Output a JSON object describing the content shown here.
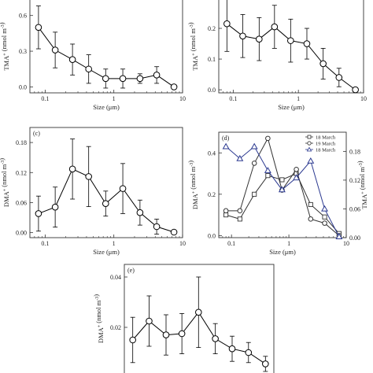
{
  "chart_data": [
    {
      "panel": "",
      "type": "line",
      "xscale": "log",
      "xlim": [
        0.06,
        10
      ],
      "ylim": [
        -0.05,
        0.75
      ],
      "xticks": [
        {
          "v": 0.1,
          "t": "0.1"
        },
        {
          "v": 1,
          "t": "1"
        },
        {
          "v": 10,
          "t": "10"
        }
      ],
      "yticks": [
        {
          "v": 0,
          "t": "0.0"
        },
        {
          "v": 0.3,
          "t": "0.3"
        },
        {
          "v": 0.6,
          "t": "0.6"
        }
      ],
      "xlabel": "Size (μm)",
      "ylabel_main": "TMA",
      "ylabel_sup": "+",
      "ylabel_unit": "(nmol m",
      "ylabel_unit_sup": "-3",
      "ylabel_end": ")",
      "series": [
        {
          "x": [
            0.08,
            0.14,
            0.25,
            0.43,
            0.76,
            1.35,
            2.4,
            4.2,
            7.5
          ],
          "y": [
            0.5,
            0.31,
            0.23,
            0.15,
            0.07,
            0.07,
            0.07,
            0.1,
            0.0
          ],
          "err": [
            0.18,
            0.15,
            0.13,
            0.12,
            0.08,
            0.08,
            0.04,
            0.07,
            0.0
          ],
          "marker": "circle",
          "color": "#000000"
        }
      ]
    },
    {
      "panel": "",
      "type": "line",
      "xscale": "log",
      "xlim": [
        0.06,
        10
      ],
      "ylim": [
        -0.01,
        0.3
      ],
      "xticks": [
        {
          "v": 0.1,
          "t": "0.1"
        },
        {
          "v": 1,
          "t": "1"
        },
        {
          "v": 10,
          "t": "10"
        }
      ],
      "yticks": [
        {
          "v": 0,
          "t": "0.0"
        },
        {
          "v": 0.1,
          "t": "0.1"
        },
        {
          "v": 0.2,
          "t": "0.2"
        }
      ],
      "xlabel": "Size (μm)",
      "ylabel_main": "TMA",
      "ylabel_sup": "+",
      "ylabel_unit": "(nmol m",
      "ylabel_unit_sup": "-3",
      "ylabel_end": ")",
      "series": [
        {
          "x": [
            0.08,
            0.14,
            0.25,
            0.43,
            0.76,
            1.35,
            2.4,
            4.2,
            7.5
          ],
          "y": [
            0.215,
            0.175,
            0.165,
            0.205,
            0.16,
            0.15,
            0.085,
            0.04,
            0.0
          ],
          "err": [
            0.09,
            0.07,
            0.07,
            0.07,
            0.07,
            0.05,
            0.05,
            0.03,
            0.0
          ],
          "marker": "circle",
          "color": "#000000"
        }
      ]
    },
    {
      "panel": "(c)",
      "type": "line",
      "xscale": "log",
      "xlim": [
        0.06,
        10
      ],
      "ylim": [
        -0.01,
        0.21
      ],
      "xticks": [
        {
          "v": 0.1,
          "t": "0.1"
        },
        {
          "v": 1,
          "t": "1"
        },
        {
          "v": 10,
          "t": "10"
        }
      ],
      "yticks": [
        {
          "v": 0,
          "t": "0.00"
        },
        {
          "v": 0.06,
          "t": "0.06"
        },
        {
          "v": 0.12,
          "t": "0.12"
        },
        {
          "v": 0.18,
          "t": "0.18"
        }
      ],
      "xlabel": "Size (μm)",
      "ylabel_main": "DMA",
      "ylabel_sup": "+",
      "ylabel_unit": "(nmol m",
      "ylabel_unit_sup": "-3",
      "ylabel_end": ")",
      "series": [
        {
          "x": [
            0.08,
            0.14,
            0.25,
            0.43,
            0.76,
            1.35,
            2.4,
            4.2,
            7.5
          ],
          "y": [
            0.038,
            0.051,
            0.127,
            0.112,
            0.058,
            0.088,
            0.04,
            0.012,
            0.001
          ],
          "err": [
            0.035,
            0.04,
            0.06,
            0.06,
            0.025,
            0.05,
            0.025,
            0.015,
            0.0
          ],
          "marker": "circle",
          "color": "#000000"
        }
      ]
    },
    {
      "panel": "(d)",
      "type": "line",
      "xscale": "log",
      "xlim": [
        0.06,
        10
      ],
      "ylim": [
        -0.01,
        0.5
      ],
      "ylim_right": [
        0.0,
        0.22
      ],
      "xticks": [
        {
          "v": 0.1,
          "t": "0.1"
        },
        {
          "v": 1,
          "t": "1"
        },
        {
          "v": 10,
          "t": "10"
        }
      ],
      "yticks": [
        {
          "v": 0,
          "t": "0.0"
        },
        {
          "v": 0.2,
          "t": "0.2"
        },
        {
          "v": 0.4,
          "t": "0.4"
        }
      ],
      "yticks_right": [
        {
          "v": 0,
          "t": "0.00"
        },
        {
          "v": 0.06,
          "t": "0.06"
        },
        {
          "v": 0.12,
          "t": "0.12"
        },
        {
          "v": 0.18,
          "t": "0.18"
        }
      ],
      "xlabel": "Size (μm)",
      "ylabel_main": "DMA",
      "ylabel_sup": "+",
      "ylabel_unit": "(nmol m",
      "ylabel_unit_sup": "-3",
      "ylabel_end": ")",
      "ylabel_right_main": "TMA",
      "ylabel_right_sup": "+",
      "ylabel_right_unit": "(nmol m",
      "ylabel_right_unit_sup": "-3",
      "ylabel_right_end": ")",
      "legend": "top-right",
      "series": [
        {
          "name": "18 March",
          "axis": "left",
          "marker": "square",
          "color": "#333333",
          "x": [
            0.08,
            0.14,
            0.25,
            0.43,
            0.76,
            1.35,
            2.4,
            4.2,
            7.5
          ],
          "y": [
            0.1,
            0.08,
            0.2,
            0.29,
            0.27,
            0.3,
            0.15,
            0.09,
            0.01
          ]
        },
        {
          "name": "19 March",
          "axis": "left",
          "marker": "circle",
          "color": "#333333",
          "x": [
            0.08,
            0.14,
            0.25,
            0.43,
            0.76,
            1.35,
            2.4,
            4.2,
            7.5
          ],
          "y": [
            0.12,
            0.12,
            0.35,
            0.47,
            0.22,
            0.32,
            0.08,
            0.06,
            0.0
          ]
        },
        {
          "name": "18 March",
          "axis": "right",
          "marker": "triangle",
          "color": "#2b3990",
          "x": [
            0.08,
            0.14,
            0.25,
            0.43,
            0.76,
            1.35,
            2.4,
            4.2,
            7.5
          ],
          "y": [
            0.19,
            0.165,
            0.19,
            0.14,
            0.1,
            0.125,
            0.16,
            0.06,
            0.002
          ]
        }
      ]
    },
    {
      "panel": "(e)",
      "type": "line",
      "xscale": "log",
      "xlim": [
        0.06,
        10
      ],
      "ylim": [
        0.0,
        0.045
      ],
      "xticks": [],
      "yticks": [
        {
          "v": 0.02,
          "t": "0.02"
        },
        {
          "v": 0.04,
          "t": "0.04"
        }
      ],
      "xlabel": "",
      "ylabel_main": "DMA",
      "ylabel_sup": "+",
      "ylabel_unit": "(nmol m",
      "ylabel_unit_sup": "-3",
      "ylabel_end": ")",
      "series": [
        {
          "x": [
            0.08,
            0.14,
            0.25,
            0.43,
            0.76,
            1.35,
            2.4,
            4.2,
            7.5
          ],
          "y": [
            0.015,
            0.0225,
            0.017,
            0.0175,
            0.026,
            0.0155,
            0.0115,
            0.01,
            0.0055
          ],
          "err": [
            0.009,
            0.01,
            0.008,
            0.008,
            0.014,
            0.006,
            0.005,
            0.004,
            0.003
          ],
          "marker": "circle",
          "color": "#000000"
        }
      ]
    }
  ]
}
